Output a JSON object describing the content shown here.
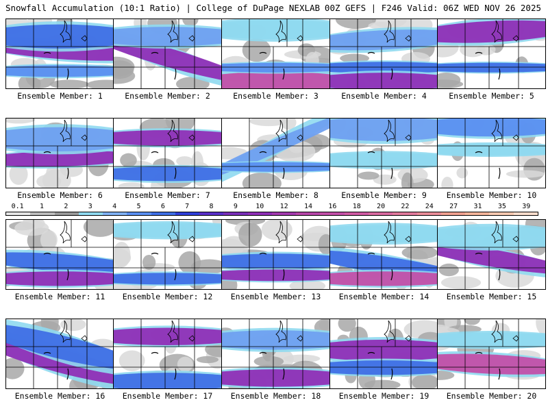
{
  "header": {
    "left_title": "Snowfall Accumulation (10:1 Ratio) | College of DuPage NEXLAB",
    "right_title": "00Z GEFS | F246 Valid: 06Z WED NOV 26 2025"
  },
  "member_label_prefix": "Ensemble Member: ",
  "members": [
    {
      "number": "1",
      "bands": [
        {
          "y": 0.45,
          "tilt": -0.15,
          "w": 0.18,
          "c": "#8f2fb6"
        },
        {
          "y": 0.25,
          "tilt": 0.0,
          "w": 0.25,
          "c": "#3f6fe5"
        },
        {
          "y": 0.75,
          "tilt": 0.0,
          "w": 0.12,
          "c": "#5a8ff0"
        }
      ]
    },
    {
      "number": "2",
      "bands": [
        {
          "y": 0.55,
          "tilt": -0.6,
          "w": 0.2,
          "c": "#8f2fb6"
        },
        {
          "y": 0.25,
          "tilt": 0.0,
          "w": 0.2,
          "c": "#6fa0f0"
        }
      ]
    },
    {
      "number": "3",
      "bands": [
        {
          "y": 0.9,
          "tilt": 0.0,
          "w": 0.2,
          "c": "#c24fa8"
        },
        {
          "y": 0.7,
          "tilt": 0.0,
          "w": 0.1,
          "c": "#5a8ff0"
        },
        {
          "y": 0.15,
          "tilt": 0.0,
          "w": 0.2,
          "c": "#8fd9ef"
        }
      ]
    },
    {
      "number": "4",
      "bands": [
        {
          "y": 0.7,
          "tilt": 0.0,
          "w": 0.12,
          "c": "#3f6fe5"
        },
        {
          "y": 0.3,
          "tilt": 0.1,
          "w": 0.2,
          "c": "#6fa0f0"
        },
        {
          "y": 0.9,
          "tilt": 0.0,
          "w": 0.18,
          "c": "#8f2fb6"
        }
      ]
    },
    {
      "number": "5",
      "bands": [
        {
          "y": 0.18,
          "tilt": 0.1,
          "w": 0.22,
          "c": "#8f2fb6"
        },
        {
          "y": 0.7,
          "tilt": 0.0,
          "w": 0.1,
          "c": "#3f6fe5"
        }
      ]
    },
    {
      "number": "6",
      "bands": [
        {
          "y": 0.58,
          "tilt": 0.05,
          "w": 0.16,
          "c": "#8f2fb6"
        },
        {
          "y": 0.3,
          "tilt": 0.0,
          "w": 0.25,
          "c": "#6fa0f0"
        }
      ]
    },
    {
      "number": "7",
      "bands": [
        {
          "y": 0.28,
          "tilt": 0.0,
          "w": 0.16,
          "c": "#8f2fb6"
        },
        {
          "y": 0.8,
          "tilt": 0.0,
          "w": 0.15,
          "c": "#3f6fe5"
        }
      ]
    },
    {
      "number": "8",
      "bands": [
        {
          "y": 0.4,
          "tilt": 0.9,
          "w": 0.15,
          "c": "#6fa0f0"
        },
        {
          "y": 0.7,
          "tilt": 0.0,
          "w": 0.1,
          "c": "#5a8ff0"
        }
      ]
    },
    {
      "number": "9",
      "bands": [
        {
          "y": 0.15,
          "tilt": 0.0,
          "w": 0.25,
          "c": "#6fa0f0"
        },
        {
          "y": 0.6,
          "tilt": 0.0,
          "w": 0.15,
          "c": "#8fd9ef"
        }
      ]
    },
    {
      "number": "10",
      "bands": [
        {
          "y": 0.12,
          "tilt": 0.0,
          "w": 0.2,
          "c": "#5a8ff0"
        },
        {
          "y": 0.45,
          "tilt": 0.0,
          "w": 0.12,
          "c": "#8fd9ef"
        }
      ]
    },
    {
      "number": "11",
      "bands": [
        {
          "y": 0.62,
          "tilt": -0.15,
          "w": 0.18,
          "c": "#3f6fe5"
        },
        {
          "y": 0.85,
          "tilt": 0.0,
          "w": 0.15,
          "c": "#8f2fb6"
        }
      ]
    },
    {
      "number": "12",
      "bands": [
        {
          "y": 0.15,
          "tilt": 0.0,
          "w": 0.15,
          "c": "#8fd9ef"
        },
        {
          "y": 0.85,
          "tilt": 0.0,
          "w": 0.12,
          "c": "#3f6fe5"
        }
      ]
    },
    {
      "number": "13",
      "bands": [
        {
          "y": 0.6,
          "tilt": 0.0,
          "w": 0.16,
          "c": "#3f6fe5"
        },
        {
          "y": 0.8,
          "tilt": 0.0,
          "w": 0.12,
          "c": "#8f2fb6"
        }
      ]
    },
    {
      "number": "14",
      "bands": [
        {
          "y": 0.65,
          "tilt": -0.3,
          "w": 0.18,
          "c": "#3f6fe5"
        },
        {
          "y": 0.85,
          "tilt": 0.0,
          "w": 0.15,
          "c": "#c24fa8"
        },
        {
          "y": 0.2,
          "tilt": 0.0,
          "w": 0.18,
          "c": "#8fd9ef"
        }
      ]
    },
    {
      "number": "15",
      "bands": [
        {
          "y": 0.55,
          "tilt": -0.35,
          "w": 0.18,
          "c": "#8f2fb6"
        },
        {
          "y": 0.25,
          "tilt": 0.0,
          "w": 0.22,
          "c": "#8fd9ef"
        }
      ]
    },
    {
      "number": "16",
      "bands": [
        {
          "y": 0.6,
          "tilt": -0.55,
          "w": 0.25,
          "c": "#8f2fb6"
        },
        {
          "y": 0.4,
          "tilt": -0.5,
          "w": 0.25,
          "c": "#3f6fe5"
        }
      ]
    },
    {
      "number": "17",
      "bands": [
        {
          "y": 0.25,
          "tilt": 0.0,
          "w": 0.18,
          "c": "#8f2fb6"
        },
        {
          "y": 0.9,
          "tilt": 0.0,
          "w": 0.18,
          "c": "#3f6fe5"
        }
      ]
    },
    {
      "number": "18",
      "bands": [
        {
          "y": 0.85,
          "tilt": 0.0,
          "w": 0.18,
          "c": "#8f2fb6"
        },
        {
          "y": 0.3,
          "tilt": 0.0,
          "w": 0.2,
          "c": "#6fa0f0"
        }
      ]
    },
    {
      "number": "19",
      "bands": [
        {
          "y": 0.45,
          "tilt": 0.0,
          "w": 0.22,
          "c": "#8f2fb6"
        },
        {
          "y": 0.7,
          "tilt": 0.0,
          "w": 0.15,
          "c": "#3f6fe5"
        }
      ]
    },
    {
      "number": "20",
      "bands": [
        {
          "y": 0.65,
          "tilt": -0.1,
          "w": 0.2,
          "c": "#c24fa8"
        },
        {
          "y": 0.3,
          "tilt": 0.0,
          "w": 0.15,
          "c": "#8fd9ef"
        }
      ]
    }
  ],
  "colorbar": {
    "labels": [
      "0.1",
      "1",
      "2",
      "3",
      "4",
      "5",
      "6",
      "7",
      "8",
      "9",
      "10",
      "12",
      "14",
      "16",
      "18",
      "20",
      "22",
      "24",
      "27",
      "31",
      "35",
      "39"
    ],
    "colors": [
      "#e6e6e6",
      "#bdbdbd",
      "#999999",
      "#8fd9ef",
      "#7fb0f2",
      "#5a8ff0",
      "#3f6fe5",
      "#2f3fd8",
      "#5a30c8",
      "#7a2fb8",
      "#8f2fb6",
      "#a33aae",
      "#b646a8",
      "#c24fa8",
      "#cf5aa3",
      "#d86aa0",
      "#e07a9c",
      "#e88c98",
      "#eea090",
      "#f2b49a",
      "#f5c8b0",
      "#f8dccc"
    ]
  },
  "colors": {
    "background": "#ffffff",
    "land": "#ffffff",
    "grey_light": "#d9d9d9",
    "grey_dark": "#a8a8a8",
    "cyan": "#8fd9ef",
    "border": "#000000"
  }
}
